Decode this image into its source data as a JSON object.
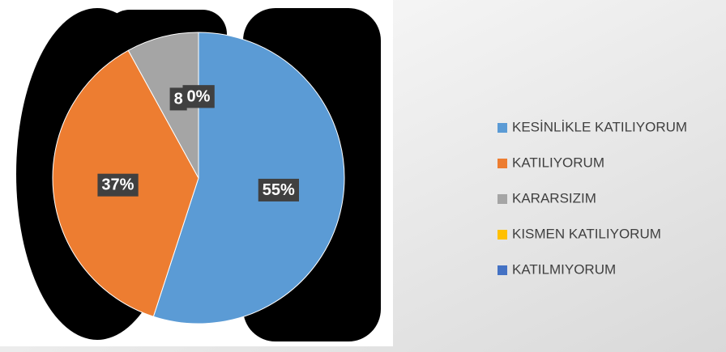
{
  "chart_data": {
    "type": "pie",
    "categories": [
      "KESİNLİKLE KATILIYORUM",
      "KATILIYORUM",
      "KARARSIZIM",
      "KISMEN KATILIYORUM",
      "KATILMIYORUM"
    ],
    "values": [
      55,
      37,
      8,
      0,
      0
    ],
    "value_labels": [
      "55%",
      "37%",
      "8",
      "0%",
      "0%"
    ],
    "colors": [
      "#5b9bd5",
      "#ed7d31",
      "#a5a5a5",
      "#ffc000",
      "#4472c4"
    ],
    "legend": "right"
  }
}
